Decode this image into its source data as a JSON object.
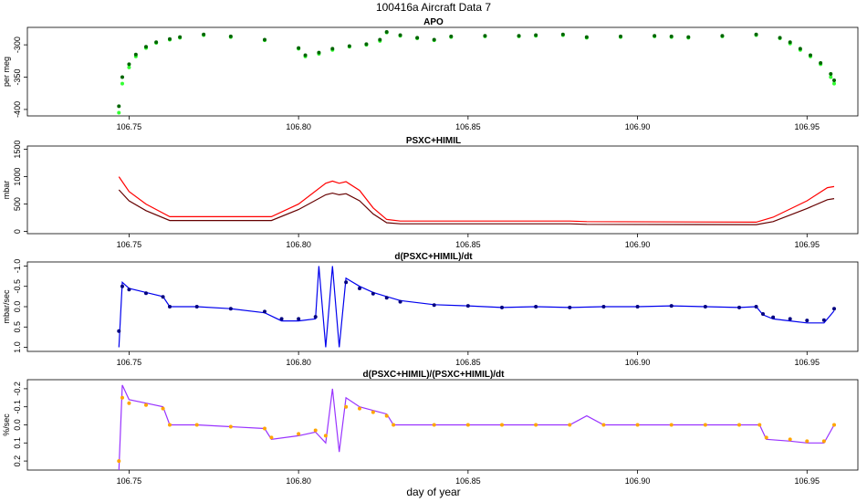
{
  "window": {
    "title": "100416a   Aircraft Data 7"
  },
  "chart_data": {
    "type": "line",
    "xlabel": "day of year",
    "xlim": [
      106.72,
      106.965
    ],
    "xticks": [
      106.75,
      106.8,
      106.85,
      106.9,
      106.95
    ],
    "xtick_labels": [
      "106.75",
      "106.80",
      "106.85",
      "106.90",
      "106.95"
    ],
    "panels": [
      {
        "title": "APO",
        "ylabel": "per meg",
        "ylim": [
          -410,
          -273
        ],
        "yticks": [
          -400,
          -350,
          -300
        ],
        "ytick_labels": [
          "-400",
          "-350",
          "-300"
        ],
        "series": [
          {
            "color": "#33ff33",
            "style": "points",
            "x": [
              106.747,
              106.748,
              106.75,
              106.752,
              106.755,
              106.758,
              106.762,
              106.765,
              106.772,
              106.78,
              106.79,
              106.8,
              106.802,
              106.806,
              106.81,
              106.815,
              106.82,
              106.824,
              106.826,
              106.83,
              106.835,
              106.84,
              106.845,
              106.855,
              106.865,
              106.87,
              106.878,
              106.885,
              106.895,
              106.905,
              106.91,
              106.915,
              106.925,
              106.935,
              106.942,
              106.945,
              106.948,
              106.951,
              106.954,
              106.957,
              106.958
            ],
            "y": [
              -405,
              -360,
              -335,
              -318,
              -305,
              -297,
              -292,
              -289,
              -285,
              -288,
              -293,
              -306,
              -318,
              -314,
              -308,
              -303,
              -300,
              -294,
              -281,
              -286,
              -290,
              -293,
              -288,
              -287,
              -287,
              -286,
              -285,
              -289,
              -288,
              -287,
              -288,
              -289,
              -287,
              -285,
              -290,
              -298,
              -308,
              -318,
              -330,
              -350,
              -360
            ]
          },
          {
            "color": "#006600",
            "style": "points",
            "x": [
              106.747,
              106.748,
              106.75,
              106.752,
              106.755,
              106.758,
              106.762,
              106.765,
              106.772,
              106.78,
              106.79,
              106.8,
              106.802,
              106.806,
              106.81,
              106.815,
              106.82,
              106.824,
              106.826,
              106.83,
              106.835,
              106.84,
              106.845,
              106.855,
              106.865,
              106.87,
              106.878,
              106.885,
              106.895,
              106.905,
              106.91,
              106.915,
              106.925,
              106.935,
              106.942,
              106.945,
              106.948,
              106.951,
              106.954,
              106.957,
              106.958
            ],
            "y": [
              -395,
              -350,
              -330,
              -315,
              -303,
              -296,
              -291,
              -288,
              -284,
              -287,
              -292,
              -305,
              -316,
              -312,
              -306,
              -302,
              -299,
              -292,
              -280,
              -285,
              -289,
              -292,
              -287,
              -286,
              -286,
              -285,
              -284,
              -288,
              -287,
              -286,
              -287,
              -288,
              -286,
              -284,
              -289,
              -296,
              -306,
              -316,
              -328,
              -345,
              -355
            ]
          }
        ]
      },
      {
        "title": "PSXC+HIMIL",
        "ylabel": "mbar",
        "ylim": [
          -40,
          1560
        ],
        "yticks": [
          0,
          500,
          1000,
          1500
        ],
        "ytick_labels": [
          "0",
          "500",
          "1000",
          "1500"
        ],
        "series": [
          {
            "color": "#ff0000",
            "style": "line",
            "x": [
              106.747,
              106.75,
              106.755,
              106.762,
              106.792,
              106.8,
              106.808,
              106.81,
              106.812,
              106.814,
              106.818,
              106.822,
              106.826,
              106.83,
              106.88,
              106.885,
              106.935,
              106.94,
              106.95,
              106.956,
              106.958
            ],
            "y": [
              1000,
              730,
              500,
              270,
              270,
              500,
              880,
              920,
              880,
              910,
              750,
              430,
              220,
              190,
              190,
              180,
              170,
              260,
              560,
              800,
              820
            ]
          },
          {
            "color": "#660000",
            "style": "line",
            "x": [
              106.747,
              106.75,
              106.755,
              106.762,
              106.792,
              106.8,
              106.808,
              106.81,
              106.812,
              106.814,
              106.818,
              106.822,
              106.826,
              106.83,
              106.88,
              106.885,
              106.935,
              106.94,
              106.95,
              106.956,
              106.958
            ],
            "y": [
              760,
              560,
              380,
              200,
              200,
              400,
              670,
              700,
              670,
              690,
              560,
              320,
              160,
              140,
              140,
              130,
              125,
              180,
              420,
              580,
              600
            ]
          }
        ]
      },
      {
        "title": "d(PSXC+HIMIL)/dt",
        "ylabel": "mbar/sec",
        "ylim": [
          1.1,
          -1.1
        ],
        "yticks": [
          1.0,
          0.5,
          0.0,
          -0.5,
          -1.0
        ],
        "ytick_labels": [
          "1.0",
          "0.5",
          "0.0",
          "-0.5",
          "-1.0"
        ],
        "series": [
          {
            "color": "#0000ee",
            "style": "line",
            "x": [
              106.747,
              106.748,
              106.75,
              106.755,
              106.76,
              106.762,
              106.77,
              106.78,
              106.79,
              106.795,
              106.8,
              106.805,
              106.806,
              106.808,
              106.81,
              106.812,
              106.814,
              106.818,
              106.822,
              106.826,
              106.83,
              106.84,
              106.85,
              106.86,
              106.87,
              106.88,
              106.89,
              106.9,
              106.91,
              106.92,
              106.93,
              106.935,
              106.937,
              106.94,
              106.945,
              106.95,
              106.955,
              106.958
            ],
            "y": [
              1.0,
              -0.6,
              -0.45,
              -0.35,
              -0.25,
              0.0,
              0.0,
              0.05,
              0.15,
              0.35,
              0.35,
              0.3,
              -1.0,
              1.0,
              -1.0,
              1.0,
              -0.7,
              -0.5,
              -0.35,
              -0.25,
              -0.15,
              -0.05,
              -0.02,
              0.02,
              0.0,
              0.02,
              0.0,
              0.0,
              -0.02,
              0.0,
              0.02,
              0.0,
              0.2,
              0.3,
              0.35,
              0.4,
              0.4,
              0.1
            ]
          },
          {
            "color": "#000080",
            "style": "points",
            "x": [
              106.747,
              106.748,
              106.75,
              106.755,
              106.76,
              106.762,
              106.77,
              106.78,
              106.79,
              106.795,
              106.8,
              106.805,
              106.814,
              106.818,
              106.822,
              106.826,
              106.83,
              106.84,
              106.85,
              106.86,
              106.87,
              106.88,
              106.89,
              106.9,
              106.91,
              106.92,
              106.93,
              106.935,
              106.937,
              106.94,
              106.945,
              106.95,
              106.955,
              106.958
            ],
            "y": [
              0.6,
              -0.5,
              -0.42,
              -0.33,
              -0.24,
              0.0,
              0.0,
              0.05,
              0.12,
              0.3,
              0.3,
              0.25,
              -0.6,
              -0.45,
              -0.32,
              -0.22,
              -0.12,
              -0.04,
              -0.02,
              0.02,
              0.0,
              0.02,
              0.0,
              0.0,
              -0.02,
              0.0,
              0.02,
              0.0,
              0.18,
              0.26,
              0.3,
              0.34,
              0.33,
              0.05
            ]
          }
        ]
      },
      {
        "title": "d(PSXC+HIMIL)/(PSXC+HIMIL)/dt",
        "ylabel": "%/sec",
        "ylim": [
          0.25,
          -0.25
        ],
        "yticks": [
          0.2,
          0.1,
          0.0,
          -0.1,
          -0.2
        ],
        "ytick_labels": [
          "0.2",
          "0.1",
          "0.0",
          "-0.1",
          "-0.2"
        ],
        "series": [
          {
            "color": "#9933ff",
            "style": "line",
            "x": [
              106.747,
              106.748,
              106.75,
              106.755,
              106.76,
              106.762,
              106.77,
              106.78,
              106.79,
              106.792,
              106.8,
              106.805,
              106.808,
              106.81,
              106.812,
              106.814,
              106.818,
              106.822,
              106.826,
              106.828,
              106.84,
              106.85,
              106.86,
              106.87,
              106.88,
              106.885,
              106.89,
              106.9,
              106.91,
              106.92,
              106.93,
              106.936,
              106.938,
              106.945,
              106.95,
              106.955,
              106.958
            ],
            "y": [
              0.25,
              -0.22,
              -0.14,
              -0.12,
              -0.1,
              0.0,
              0.0,
              0.01,
              0.02,
              0.08,
              0.06,
              0.04,
              0.1,
              -0.2,
              0.15,
              -0.15,
              -0.1,
              -0.08,
              -0.06,
              0.0,
              0.0,
              0.0,
              0.0,
              0.0,
              0.0,
              -0.05,
              0.0,
              0.0,
              0.0,
              0.0,
              0.0,
              0.0,
              0.08,
              0.09,
              0.1,
              0.1,
              0.0
            ]
          },
          {
            "color": "#ffa500",
            "style": "points",
            "x": [
              106.747,
              106.748,
              106.75,
              106.755,
              106.76,
              106.762,
              106.77,
              106.78,
              106.79,
              106.792,
              106.8,
              106.805,
              106.808,
              106.814,
              106.818,
              106.822,
              106.826,
              106.828,
              106.84,
              106.85,
              106.86,
              106.87,
              106.88,
              106.89,
              106.9,
              106.91,
              106.92,
              106.93,
              106.936,
              106.938,
              106.945,
              106.95,
              106.955,
              106.958
            ],
            "y": [
              0.2,
              -0.15,
              -0.12,
              -0.11,
              -0.09,
              0.0,
              0.0,
              0.01,
              0.02,
              0.07,
              0.05,
              0.03,
              0.06,
              -0.1,
              -0.09,
              -0.07,
              -0.05,
              0.0,
              0.0,
              0.0,
              0.0,
              0.0,
              0.0,
              0.0,
              0.0,
              0.0,
              0.0,
              0.0,
              0.0,
              0.07,
              0.08,
              0.09,
              0.09,
              0.0
            ]
          }
        ]
      }
    ]
  }
}
